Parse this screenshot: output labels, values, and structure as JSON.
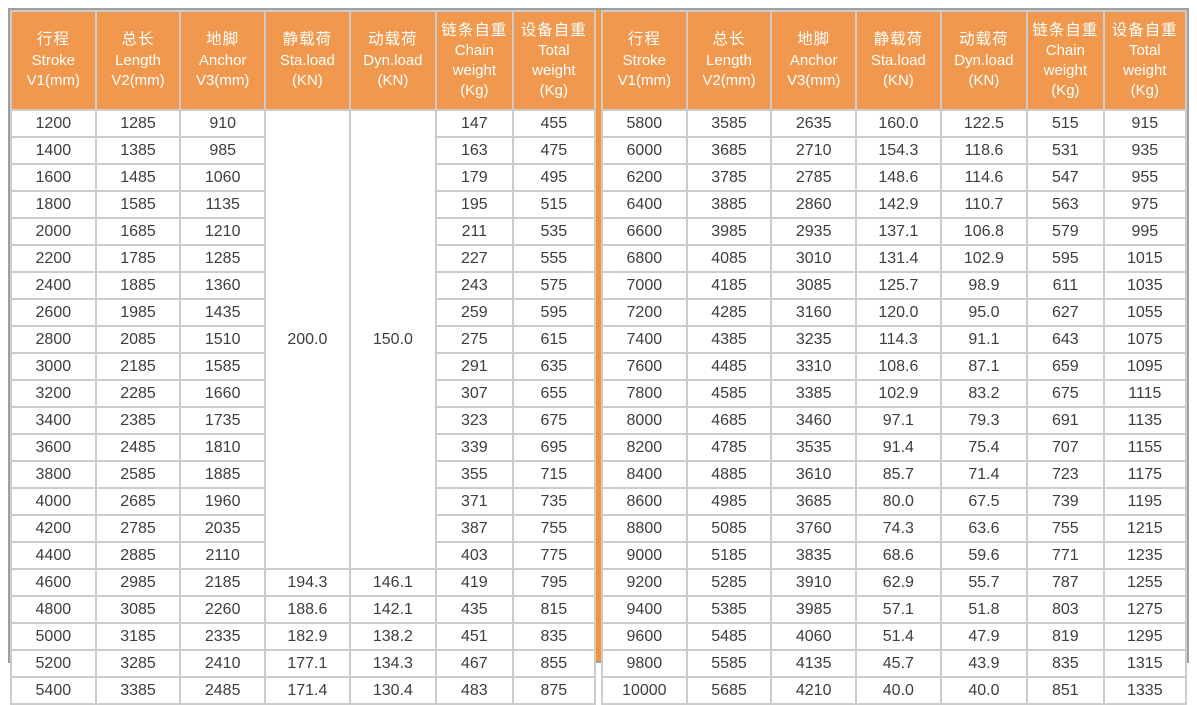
{
  "colors": {
    "header_bg": "#ef984e",
    "header_text": "#ffffff",
    "divider": "#f2953d",
    "grid_line": "#cccccc",
    "outer_border": "#a0a0a0",
    "cell_text": "#3d3d3d"
  },
  "table": {
    "columns": [
      {
        "key": "stroke",
        "zh": "行程",
        "en": [
          "Stroke",
          "V1(mm)"
        ]
      },
      {
        "key": "length",
        "zh": "总长",
        "en": [
          "Length",
          "V2(mm)"
        ]
      },
      {
        "key": "anchor",
        "zh": "地脚",
        "en": [
          "Anchor",
          "V3(mm)"
        ]
      },
      {
        "key": "sta-load",
        "zh": "静载荷",
        "en": [
          "Sta.load",
          "(KN)"
        ]
      },
      {
        "key": "dyn-load",
        "zh": "动载荷",
        "en": [
          "Dyn.load",
          "(KN)"
        ]
      },
      {
        "key": "chain-weight",
        "zh": "链条自重",
        "en": [
          "Chain",
          "weight",
          "(Kg)"
        ]
      },
      {
        "key": "total-weight",
        "zh": "设备自重",
        "en": [
          "Total",
          "weight",
          "(Kg)"
        ]
      }
    ],
    "left": {
      "merged_cells": {
        "sta_load": "200.0",
        "dyn_load": "150.0",
        "row_span": 17
      },
      "rows": [
        [
          "1200",
          "1285",
          "910",
          null,
          null,
          "147",
          "455"
        ],
        [
          "1400",
          "1385",
          "985",
          null,
          null,
          "163",
          "475"
        ],
        [
          "1600",
          "1485",
          "1060",
          null,
          null,
          "179",
          "495"
        ],
        [
          "1800",
          "1585",
          "1135",
          null,
          null,
          "195",
          "515"
        ],
        [
          "2000",
          "1685",
          "1210",
          null,
          null,
          "211",
          "535"
        ],
        [
          "2200",
          "1785",
          "1285",
          null,
          null,
          "227",
          "555"
        ],
        [
          "2400",
          "1885",
          "1360",
          null,
          null,
          "243",
          "575"
        ],
        [
          "2600",
          "1985",
          "1435",
          null,
          null,
          "259",
          "595"
        ],
        [
          "2800",
          "2085",
          "1510",
          null,
          null,
          "275",
          "615"
        ],
        [
          "3000",
          "2185",
          "1585",
          null,
          null,
          "291",
          "635"
        ],
        [
          "3200",
          "2285",
          "1660",
          null,
          null,
          "307",
          "655"
        ],
        [
          "3400",
          "2385",
          "1735",
          null,
          null,
          "323",
          "675"
        ],
        [
          "3600",
          "2485",
          "1810",
          null,
          null,
          "339",
          "695"
        ],
        [
          "3800",
          "2585",
          "1885",
          null,
          null,
          "355",
          "715"
        ],
        [
          "4000",
          "2685",
          "1960",
          null,
          null,
          "371",
          "735"
        ],
        [
          "4200",
          "2785",
          "2035",
          null,
          null,
          "387",
          "755"
        ],
        [
          "4400",
          "2885",
          "2110",
          null,
          null,
          "403",
          "775"
        ],
        [
          "4600",
          "2985",
          "2185",
          "194.3",
          "146.1",
          "419",
          "795"
        ],
        [
          "4800",
          "3085",
          "2260",
          "188.6",
          "142.1",
          "435",
          "815"
        ],
        [
          "5000",
          "3185",
          "2335",
          "182.9",
          "138.2",
          "451",
          "835"
        ],
        [
          "5200",
          "3285",
          "2410",
          "177.1",
          "134.3",
          "467",
          "855"
        ],
        [
          "5400",
          "3385",
          "2485",
          "171.4",
          "130.4",
          "483",
          "875"
        ]
      ]
    },
    "right": {
      "rows": [
        [
          "5800",
          "3585",
          "2635",
          "160.0",
          "122.5",
          "515",
          "915"
        ],
        [
          "6000",
          "3685",
          "2710",
          "154.3",
          "118.6",
          "531",
          "935"
        ],
        [
          "6200",
          "3785",
          "2785",
          "148.6",
          "114.6",
          "547",
          "955"
        ],
        [
          "6400",
          "3885",
          "2860",
          "142.9",
          "110.7",
          "563",
          "975"
        ],
        [
          "6600",
          "3985",
          "2935",
          "137.1",
          "106.8",
          "579",
          "995"
        ],
        [
          "6800",
          "4085",
          "3010",
          "131.4",
          "102.9",
          "595",
          "1015"
        ],
        [
          "7000",
          "4185",
          "3085",
          "125.7",
          "98.9",
          "611",
          "1035"
        ],
        [
          "7200",
          "4285",
          "3160",
          "120.0",
          "95.0",
          "627",
          "1055"
        ],
        [
          "7400",
          "4385",
          "3235",
          "114.3",
          "91.1",
          "643",
          "1075"
        ],
        [
          "7600",
          "4485",
          "3310",
          "108.6",
          "87.1",
          "659",
          "1095"
        ],
        [
          "7800",
          "4585",
          "3385",
          "102.9",
          "83.2",
          "675",
          "1115"
        ],
        [
          "8000",
          "4685",
          "3460",
          "97.1",
          "79.3",
          "691",
          "1135"
        ],
        [
          "8200",
          "4785",
          "3535",
          "91.4",
          "75.4",
          "707",
          "1155"
        ],
        [
          "8400",
          "4885",
          "3610",
          "85.7",
          "71.4",
          "723",
          "1175"
        ],
        [
          "8600",
          "4985",
          "3685",
          "80.0",
          "67.5",
          "739",
          "1195"
        ],
        [
          "8800",
          "5085",
          "3760",
          "74.3",
          "63.6",
          "755",
          "1215"
        ],
        [
          "9000",
          "5185",
          "3835",
          "68.6",
          "59.6",
          "771",
          "1235"
        ],
        [
          "9200",
          "5285",
          "3910",
          "62.9",
          "55.7",
          "787",
          "1255"
        ],
        [
          "9400",
          "5385",
          "3985",
          "57.1",
          "51.8",
          "803",
          "1275"
        ],
        [
          "9600",
          "5485",
          "4060",
          "51.4",
          "47.9",
          "819",
          "1295"
        ],
        [
          "9800",
          "5585",
          "4135",
          "45.7",
          "43.9",
          "835",
          "1315"
        ],
        [
          "10000",
          "5685",
          "4210",
          "40.0",
          "40.0",
          "851",
          "1335"
        ]
      ]
    }
  }
}
